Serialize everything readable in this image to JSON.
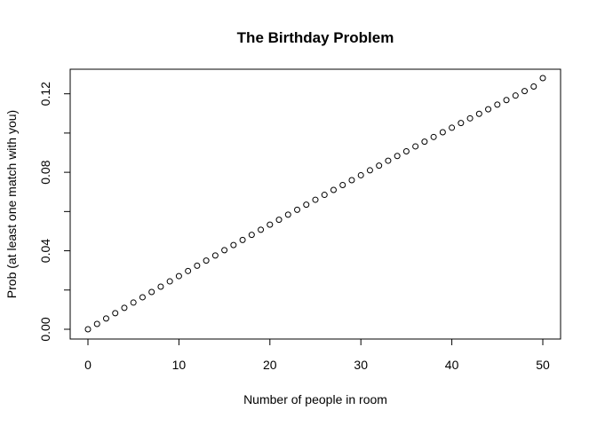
{
  "chart_data": {
    "type": "scatter",
    "title": "The Birthday Problem",
    "xlabel": "Number of people in room",
    "ylabel": "Prob (at least one match with you)",
    "xlim": [
      0,
      50
    ],
    "ylim": [
      0,
      0.128
    ],
    "xticks": [
      0,
      10,
      20,
      30,
      40,
      50
    ],
    "xtick_labels": [
      "0",
      "10",
      "20",
      "30",
      "40",
      "50"
    ],
    "yticks": [
      0.0,
      0.02,
      0.04,
      0.06,
      0.08,
      0.1,
      0.12
    ],
    "ytick_labels": [
      "0.00",
      "",
      "0.04",
      "",
      "0.08",
      "",
      "0.12"
    ],
    "grid": false,
    "marker": "open-circle",
    "x": [
      0,
      1,
      2,
      3,
      4,
      5,
      6,
      7,
      8,
      9,
      10,
      11,
      12,
      13,
      14,
      15,
      16,
      17,
      18,
      19,
      20,
      21,
      22,
      23,
      24,
      25,
      26,
      27,
      28,
      29,
      30,
      31,
      32,
      33,
      34,
      35,
      36,
      37,
      38,
      39,
      40,
      41,
      42,
      43,
      44,
      45,
      46,
      47,
      48,
      49,
      50
    ],
    "y": [
      0.0,
      0.0027,
      0.0055,
      0.0082,
      0.0109,
      0.0136,
      0.0163,
      0.019,
      0.0217,
      0.0244,
      0.0271,
      0.0297,
      0.0324,
      0.035,
      0.0376,
      0.0403,
      0.0429,
      0.0455,
      0.0481,
      0.0507,
      0.0533,
      0.0558,
      0.0584,
      0.0609,
      0.0635,
      0.066,
      0.0685,
      0.071,
      0.0735,
      0.076,
      0.0785,
      0.081,
      0.0834,
      0.0859,
      0.0883,
      0.0907,
      0.0932,
      0.0956,
      0.098,
      0.1004,
      0.1027,
      0.1051,
      0.1075,
      0.1098,
      0.1121,
      0.1145,
      0.1168,
      0.1191,
      0.1214,
      0.1237,
      0.128
    ]
  }
}
